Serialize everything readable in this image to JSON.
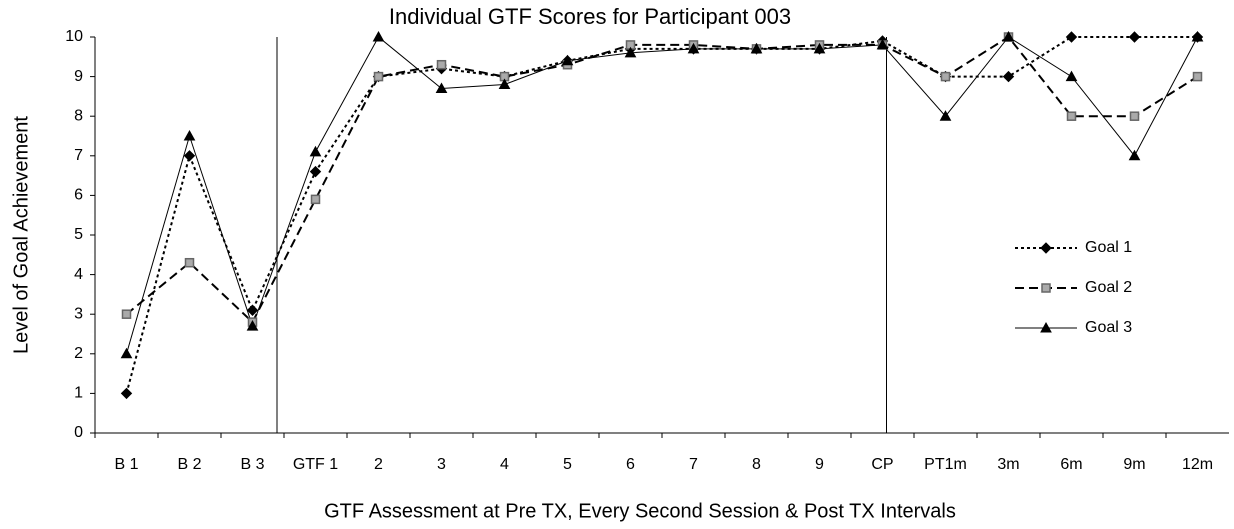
{
  "chart_data": {
    "type": "line",
    "title": "Individual GTF Scores for Participant 003",
    "x_label": "GTF Assessment at Pre TX, Every Second Session & Post TX Intervals",
    "y_label": "Level of Goal Achievement",
    "categories": [
      "B 1",
      "B 2",
      "B 3",
      "GTF 1",
      "2",
      "3",
      "4",
      "5",
      "6",
      "7",
      "8",
      "9",
      "CP",
      "PT1m",
      "3m",
      "6m",
      "9m",
      "12m"
    ],
    "series": [
      {
        "name": "Goal 1",
        "color": "#000000",
        "dash": "dotted",
        "marker": "diamond",
        "marker_fill": "#000000",
        "values": [
          1,
          7,
          3.1,
          6.6,
          9,
          9.2,
          9,
          9.4,
          9.7,
          9.7,
          9.7,
          9.7,
          9.9,
          9,
          9,
          10,
          10,
          10
        ]
      },
      {
        "name": "Goal 2",
        "color": "#000000",
        "dash": "dashed",
        "marker": "square",
        "marker_fill": "#aaaaaa",
        "values": [
          3,
          4.3,
          2.8,
          5.9,
          9,
          9.3,
          9,
          9.3,
          9.8,
          9.8,
          9.7,
          9.8,
          9.8,
          9,
          10,
          8,
          8,
          9
        ]
      },
      {
        "name": "Goal 3",
        "color": "#000000",
        "dash": "solid",
        "marker": "triangle",
        "marker_fill": "#000000",
        "values": [
          2,
          7.5,
          2.7,
          7.1,
          10,
          8.7,
          8.8,
          9.4,
          9.6,
          9.7,
          9.7,
          9.7,
          9.8,
          8,
          10,
          9,
          7,
          10
        ]
      }
    ],
    "ylim": [
      0,
      10
    ],
    "yticks": [
      0,
      1,
      2,
      3,
      4,
      5,
      6,
      7,
      8,
      9,
      10
    ],
    "grid": false,
    "legend": "right"
  }
}
